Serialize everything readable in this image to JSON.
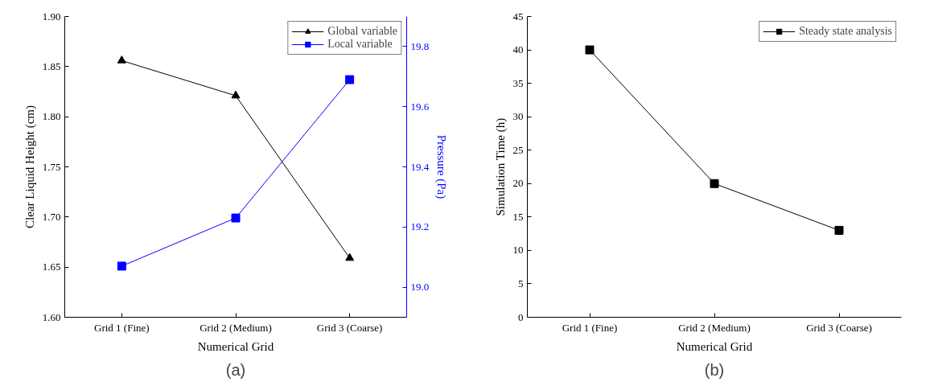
{
  "chart_data": [
    {
      "type": "line",
      "xlabel": "Numerical Grid",
      "ylabel": "Clear Liquid Height (cm)",
      "y2label": "Pressure (Pa)",
      "categories": [
        "Grid 1 (Fine)",
        "Grid 2 (Medium)",
        "Grid 3 (Coarse)"
      ],
      "series": [
        {
          "name": "Global variable",
          "color": "#000000",
          "marker": "triangle",
          "values": [
            1.856,
            1.821,
            1.659
          ]
        },
        {
          "name": "Local variable",
          "color": "#0000ff",
          "marker": "square",
          "axis": "y2",
          "values": [
            19.07,
            19.23,
            19.69
          ]
        }
      ],
      "ylim": [
        1.6,
        1.9
      ],
      "yticks": [
        {
          "value": 1.6,
          "label": "1.60"
        },
        1.65,
        {
          "value": 1.7,
          "label": "1.70"
        },
        1.75,
        {
          "value": 1.8,
          "label": "1.80"
        },
        1.85,
        {
          "value": 1.9,
          "label": "1.90"
        }
      ],
      "y2lim": [
        18.9,
        19.9
      ],
      "y2ticks": [
        {
          "value": 19.0,
          "label": "19.0"
        },
        19.2,
        19.4,
        19.6,
        19.8
      ],
      "legend": "top right",
      "grid": false,
      "annotations": [
        "(a)"
      ]
    },
    {
      "type": "line",
      "xlabel": "Numerical Grid",
      "ylabel": "Simulation Time (h)",
      "categories": [
        "Grid 1 (Fine)",
        "Grid 2 (Medium)",
        "Grid 3 (Coarse)"
      ],
      "series": [
        {
          "name": "Steady state analysis",
          "color": "#000000",
          "marker": "square",
          "values": [
            40,
            20,
            13
          ]
        }
      ],
      "ylim": [
        0,
        45
      ],
      "yticks": [
        0,
        5,
        10,
        15,
        20,
        25,
        30,
        35,
        40,
        45
      ],
      "legend": "top right",
      "grid": false,
      "annotations": [
        "(b)"
      ]
    }
  ]
}
